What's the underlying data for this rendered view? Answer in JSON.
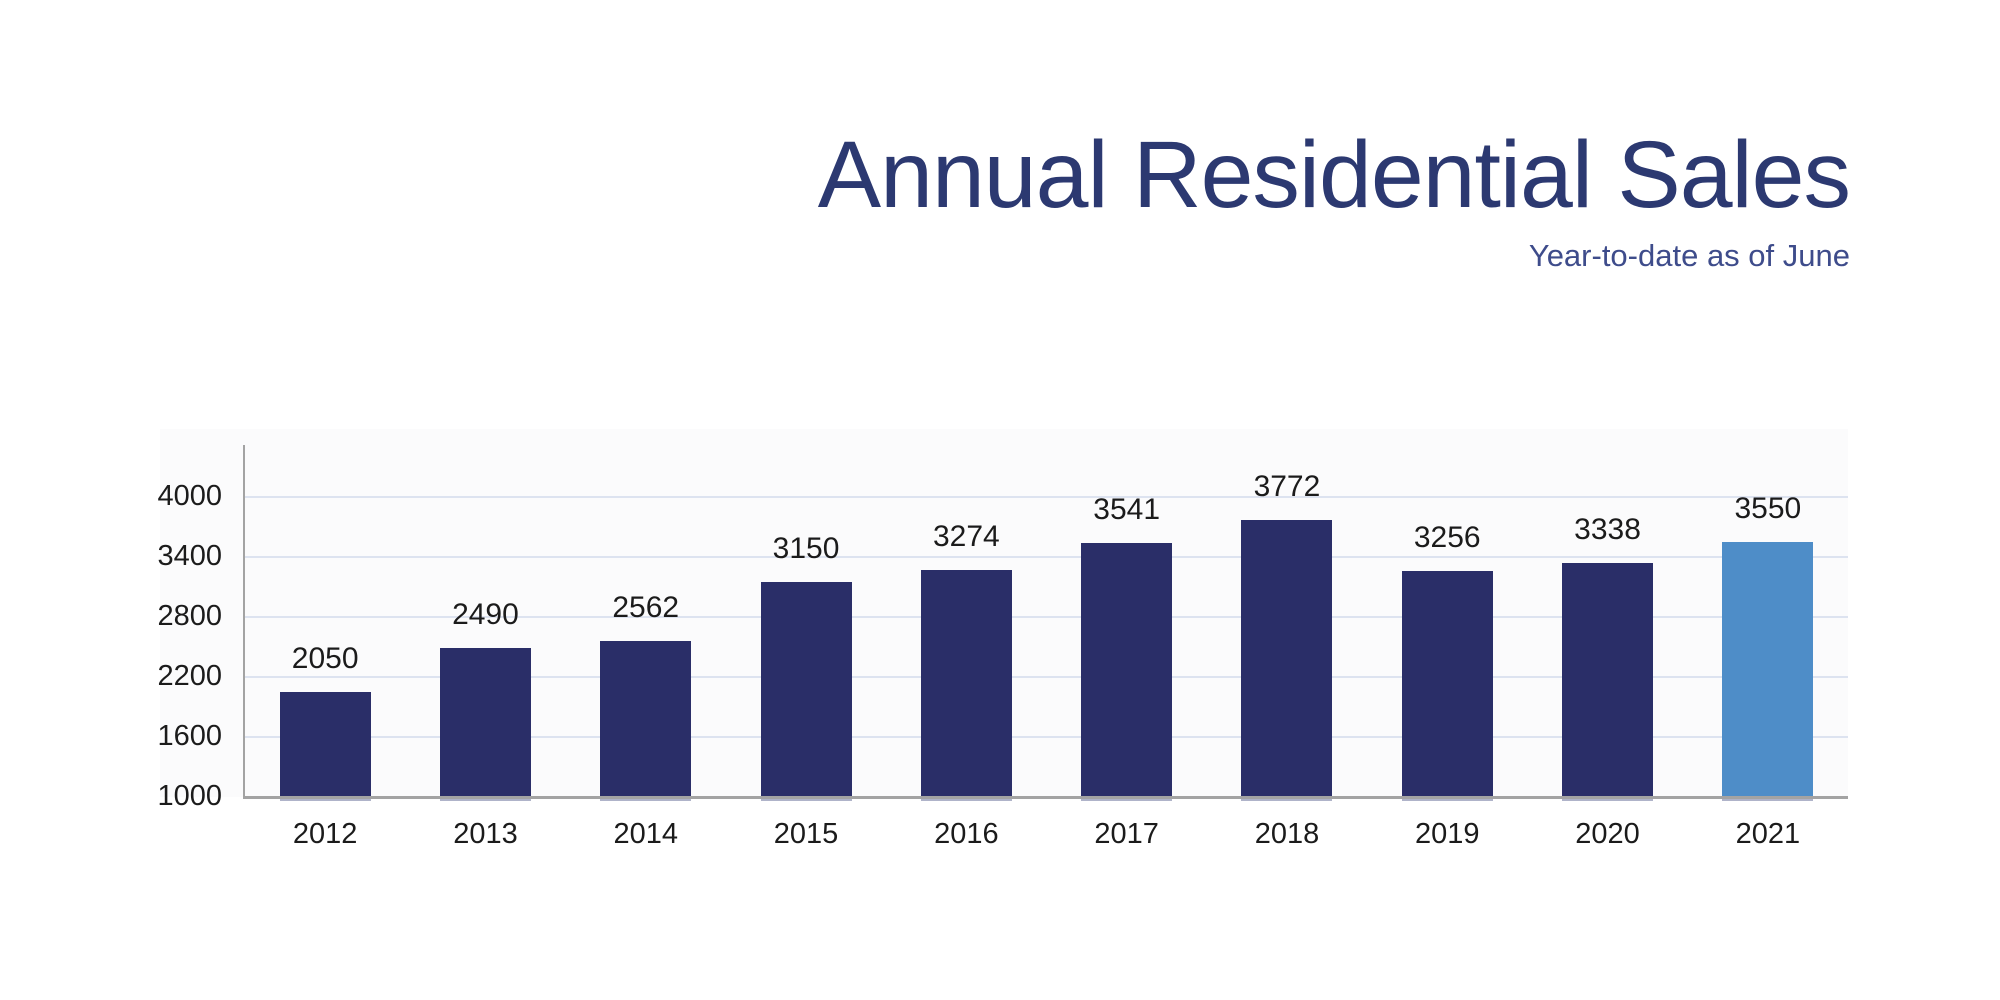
{
  "header": {
    "title": "Annual Residential Sales",
    "subtitle": "Year-to-date as of June"
  },
  "colors": {
    "bar_default": "#2A2E68",
    "bar_highlight": "#4E8DC8",
    "title_text": "#2C3971",
    "subtitle_text": "#3E4C8B",
    "axis_line": "#A3A3A3",
    "gridline": "#DDE3F0",
    "label_text": "#1B1B1B",
    "bar_shadow": "#AFB3C9"
  },
  "chart_data": {
    "type": "bar",
    "title": "Annual Residential Sales",
    "subtitle": "Year-to-date as of June",
    "categories": [
      "2012",
      "2013",
      "2014",
      "2015",
      "2016",
      "2017",
      "2018",
      "2019",
      "2020",
      "2021"
    ],
    "values": [
      2050,
      2490,
      2562,
      3150,
      3274,
      3541,
      3772,
      3256,
      3338,
      3550
    ],
    "highlight_category": "2021",
    "data_labels": true,
    "xlabel": "",
    "ylabel": "",
    "ylim": [
      1000,
      4500
    ],
    "yticks": [
      1000,
      1600,
      2200,
      2800,
      3400,
      4000
    ],
    "grid": true,
    "legend": false
  }
}
